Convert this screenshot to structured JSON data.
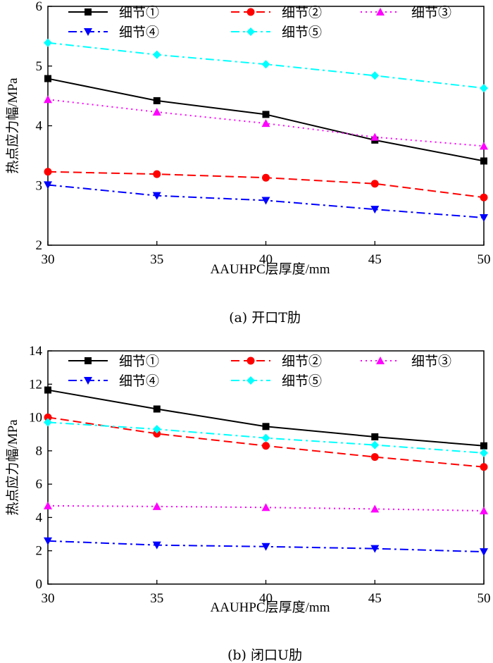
{
  "chart_data": [
    {
      "type": "line",
      "caption": "(a)  开口T肋",
      "xlabel": "AAUHPC层厚度/mm",
      "ylabel": "热点应力幅/MPa",
      "x": [
        30,
        35,
        40,
        45,
        50
      ],
      "xlim": [
        30,
        50
      ],
      "ylim": [
        2,
        6
      ],
      "xticks": [
        "30",
        "35",
        "40",
        "45",
        "50"
      ],
      "yticks": [
        "2",
        "3",
        "4",
        "5",
        "6"
      ],
      "series": [
        {
          "name": "细节①",
          "values": [
            4.79,
            4.42,
            4.19,
            3.76,
            3.41
          ],
          "color": "#000000",
          "marker": "square",
          "dash": "solid"
        },
        {
          "name": "细节②",
          "values": [
            3.23,
            3.19,
            3.13,
            3.03,
            2.8
          ],
          "color": "#ff0000",
          "marker": "circle",
          "dash": "dash"
        },
        {
          "name": "细节③",
          "values": [
            4.44,
            4.23,
            4.04,
            3.81,
            3.66
          ],
          "color": "#ff00ff",
          "marker": "triangle-up",
          "dash": "dot"
        },
        {
          "name": "细节④",
          "values": [
            3.01,
            2.83,
            2.75,
            2.6,
            2.46
          ],
          "color": "#0000ff",
          "marker": "triangle-down",
          "dash": "dashdot"
        },
        {
          "name": "细节⑤",
          "values": [
            5.39,
            5.19,
            5.03,
            4.84,
            4.63
          ],
          "color": "#00ffff",
          "marker": "diamond",
          "dash": "dashdot"
        }
      ]
    },
    {
      "type": "line",
      "caption": "(b)  闭口U肋",
      "xlabel": "AAUHPC层厚度/mm",
      "ylabel": "热点应力幅/MPa",
      "x": [
        30,
        35,
        40,
        45,
        50
      ],
      "xlim": [
        30,
        50
      ],
      "ylim": [
        0,
        14
      ],
      "xticks": [
        "30",
        "35",
        "40",
        "45",
        "50"
      ],
      "yticks": [
        "0",
        "2",
        "4",
        "6",
        "8",
        "10",
        "12",
        "14"
      ],
      "series": [
        {
          "name": "细节①",
          "values": [
            11.65,
            10.51,
            9.46,
            8.84,
            8.3
          ],
          "color": "#000000",
          "marker": "square",
          "dash": "solid"
        },
        {
          "name": "细节②",
          "values": [
            10.01,
            9.03,
            8.3,
            7.63,
            7.03
          ],
          "color": "#ff0000",
          "marker": "circle",
          "dash": "dash"
        },
        {
          "name": "细节③",
          "values": [
            4.7,
            4.66,
            4.6,
            4.51,
            4.4
          ],
          "color": "#ff00ff",
          "marker": "triangle-up",
          "dash": "dot"
        },
        {
          "name": "细节④",
          "values": [
            2.59,
            2.34,
            2.25,
            2.13,
            1.94
          ],
          "color": "#0000ff",
          "marker": "triangle-down",
          "dash": "dashdot"
        },
        {
          "name": "细节⑤",
          "values": [
            9.71,
            9.3,
            8.77,
            8.35,
            7.87
          ],
          "color": "#00ffff",
          "marker": "diamond",
          "dash": "dashdot"
        }
      ]
    }
  ]
}
